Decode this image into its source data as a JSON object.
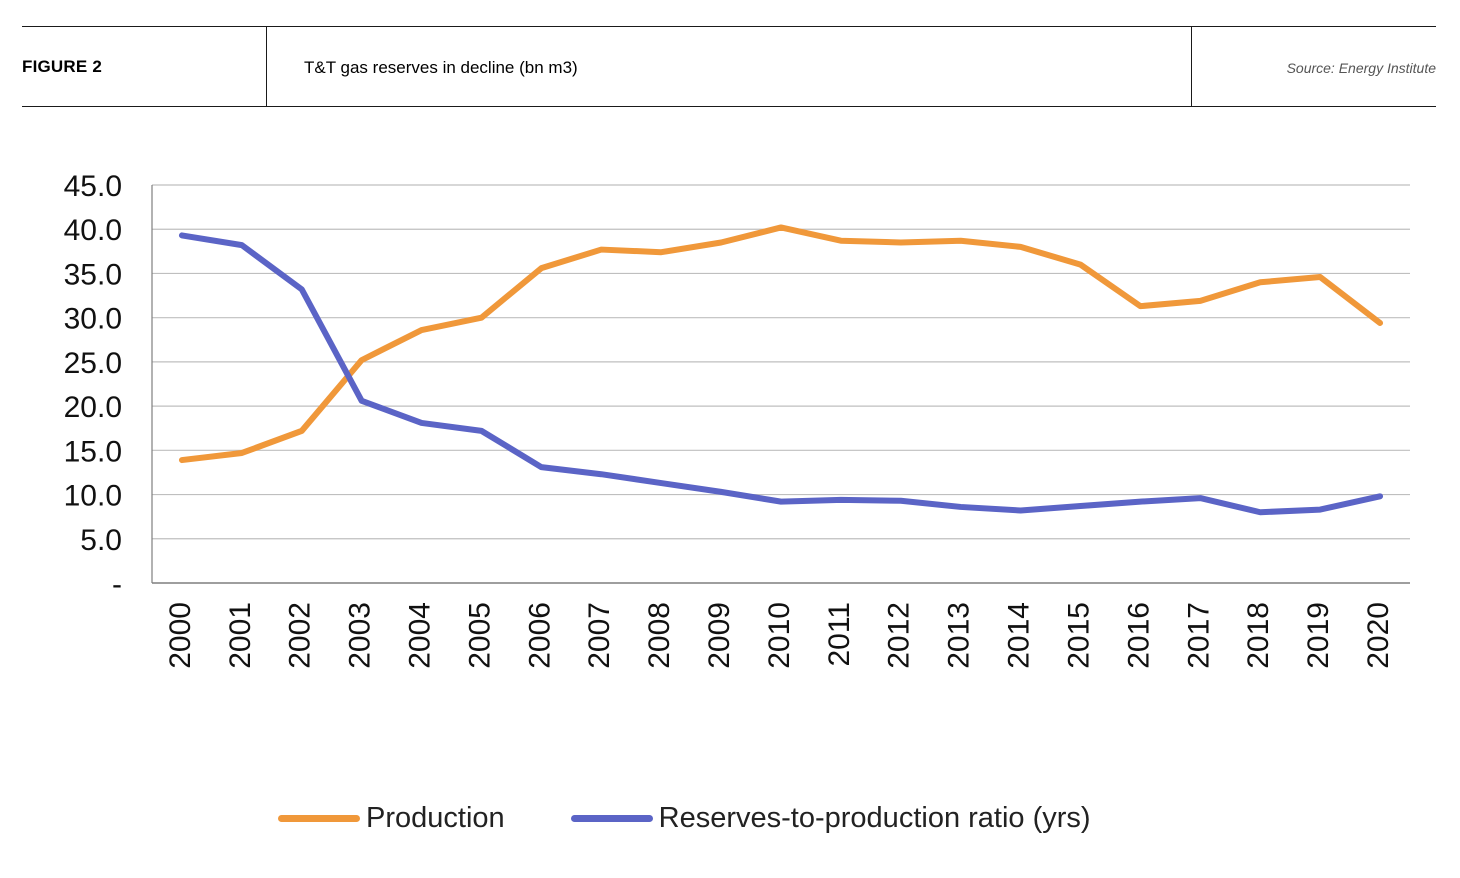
{
  "header": {
    "figure_label": "FIGURE 2",
    "title": "T&T gas reserves in decline (bn m3)",
    "source": "Source: Energy Institute"
  },
  "colors": {
    "production": "#F0983A",
    "reserves_ratio": "#5B64C6",
    "grid": "#BFBFBF",
    "axis": "#7F7F7F"
  },
  "chart_data": {
    "type": "line",
    "title": "",
    "xlabel": "",
    "ylabel": "",
    "categories": [
      "2000",
      "2001",
      "2002",
      "2003",
      "2004",
      "2005",
      "2006",
      "2007",
      "2008",
      "2009",
      "2010",
      "2011",
      "2012",
      "2013",
      "2014",
      "2015",
      "2016",
      "2017",
      "2018",
      "2019",
      "2020"
    ],
    "ylim": [
      0,
      45
    ],
    "yticks": [
      "-",
      "5.0",
      "10.0",
      "15.0",
      "20.0",
      "25.0",
      "30.0",
      "35.0",
      "40.0",
      "45.0"
    ],
    "grid": true,
    "legend_position": "bottom",
    "series": [
      {
        "name": "Production",
        "values": [
          13.9,
          14.7,
          17.2,
          25.2,
          28.6,
          30.0,
          35.6,
          37.7,
          37.4,
          38.5,
          40.2,
          38.7,
          38.5,
          38.7,
          38.0,
          36.0,
          31.3,
          31.9,
          34.0,
          34.6,
          29.4
        ]
      },
      {
        "name": "Reserves-to-production ratio (yrs)",
        "values": [
          39.3,
          38.2,
          33.2,
          20.6,
          18.1,
          17.2,
          13.1,
          12.3,
          11.3,
          10.3,
          9.2,
          9.4,
          9.3,
          8.6,
          8.2,
          8.7,
          9.2,
          9.6,
          8.0,
          8.3,
          9.8
        ]
      }
    ]
  }
}
